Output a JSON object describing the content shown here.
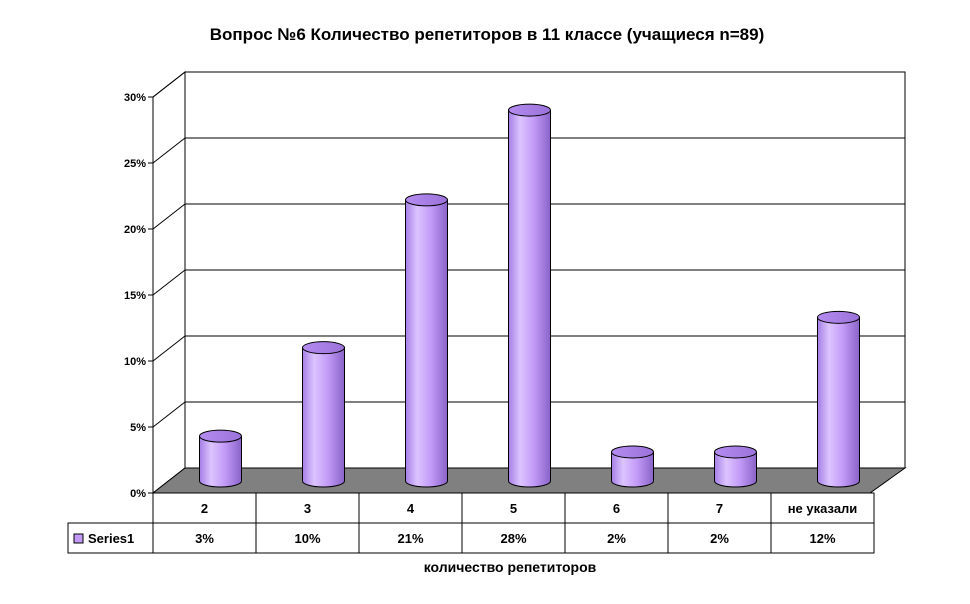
{
  "chart_data": {
    "type": "bar",
    "title": "Вопрос №6 Количество репетиторов в 11 классе (учащиеся n=89)",
    "xlabel": "количество репетиторов",
    "ylabel": "",
    "ylim": [
      0,
      30
    ],
    "yticks": [
      "0%",
      "5%",
      "10%",
      "15%",
      "20%",
      "25%",
      "30%"
    ],
    "categories": [
      "2",
      "3",
      "4",
      "5",
      "6",
      "7",
      "не указали"
    ],
    "series": [
      {
        "name": "Series1",
        "values": [
          3.4,
          10.1,
          21.3,
          28.1,
          2.2,
          2.2,
          12.4
        ],
        "labels": [
          "3%",
          "10%",
          "21%",
          "28%",
          "2%",
          "2%",
          "12%"
        ],
        "color": "#c39bf7"
      }
    ],
    "grid": true,
    "legend": "data-table-left",
    "bar_shape": "cylinder-3d",
    "floor_color": "#808080"
  }
}
